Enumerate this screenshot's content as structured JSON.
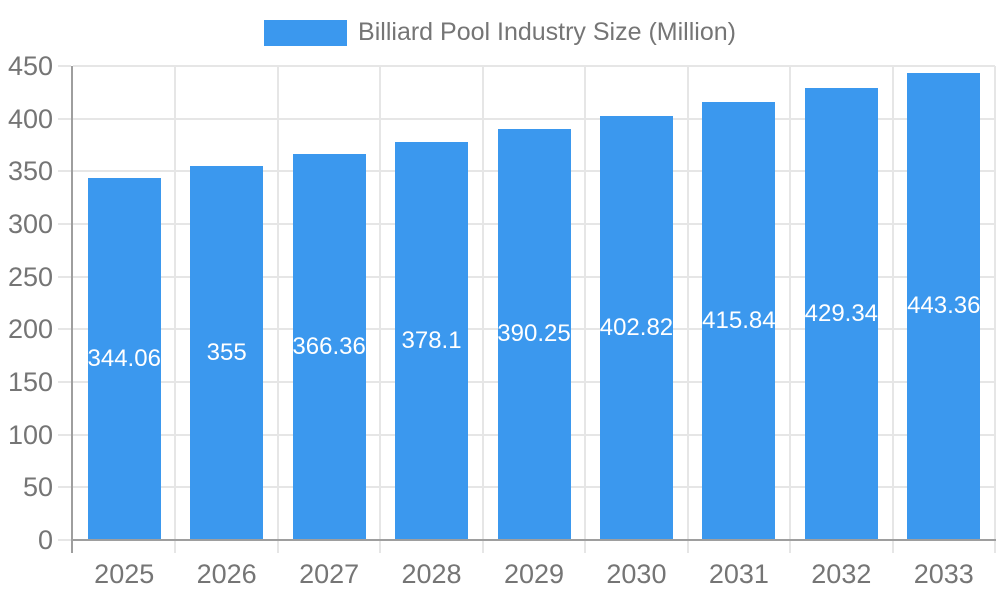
{
  "colors": {
    "bar": "#3b98ee",
    "grid": "#e6e6e6",
    "axis_line": "#9e9e9e",
    "axis_label": "#757575",
    "legend_text": "#757575",
    "value_label": "#ffffff",
    "background": "#ffffff"
  },
  "legend": {
    "label": "Billiard Pool Industry Size (Million)"
  },
  "chart_data": {
    "type": "bar",
    "title": "Billiard Pool Industry Size (Million)",
    "categories": [
      "2025",
      "2026",
      "2027",
      "2028",
      "2029",
      "2030",
      "2031",
      "2032",
      "2033"
    ],
    "values": [
      344.06,
      355,
      366.36,
      378.1,
      390.25,
      402.82,
      415.84,
      429.34,
      443.36
    ],
    "value_labels": [
      "344.06",
      "355",
      "366.36",
      "378.1",
      "390.25",
      "402.82",
      "415.84",
      "429.34",
      "443.36"
    ],
    "xlabel": "",
    "ylabel": "",
    "ylim": [
      0,
      450
    ],
    "yticks": [
      0,
      50,
      100,
      150,
      200,
      250,
      300,
      350,
      400,
      450
    ],
    "grid": true,
    "legend_position": "top",
    "value_label_position": "inside-middle",
    "bar_color": "#3b98ee"
  }
}
